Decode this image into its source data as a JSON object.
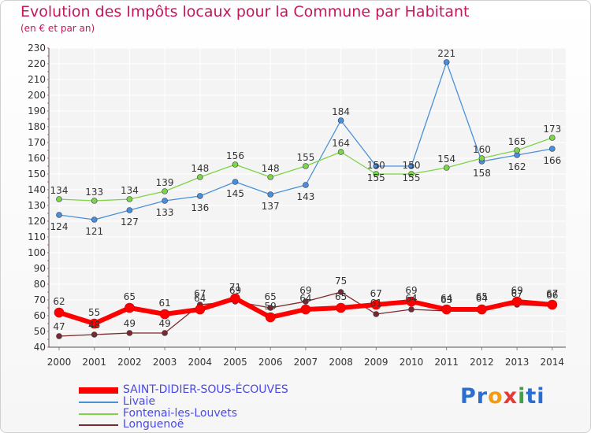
{
  "title": "Evolution des Impôts locaux pour la Commune par Habitant",
  "subtitle": "(en € et par an)",
  "logo": [
    "Pr",
    "o",
    "x",
    "i",
    "ti"
  ],
  "logo_colors": [
    "#2a6fd0",
    "#f39c12",
    "#e53935",
    "#43a047",
    "#2a6fd0"
  ],
  "chart_data": {
    "type": "line",
    "x": [
      2000,
      2001,
      2002,
      2003,
      2004,
      2005,
      2006,
      2007,
      2008,
      2009,
      2010,
      2011,
      2012,
      2013,
      2014
    ],
    "ylim": [
      40,
      230
    ],
    "yticks": [
      40,
      50,
      60,
      70,
      80,
      90,
      100,
      110,
      120,
      130,
      140,
      150,
      160,
      170,
      180,
      190,
      200,
      210,
      220,
      230
    ],
    "grid": true,
    "series": [
      {
        "name": "SAINT-DIDIER-SOUS-ÉCOUVES",
        "color": "#ff0000",
        "values": [
          62,
          55,
          65,
          61,
          64,
          71,
          59,
          64,
          65,
          67,
          69,
          64,
          64,
          69,
          67
        ]
      },
      {
        "name": "Livaie",
        "color": "#4a90d9",
        "values": [
          124,
          121,
          127,
          133,
          136,
          145,
          137,
          143,
          184,
          155,
          155,
          221,
          158,
          162,
          166
        ]
      },
      {
        "name": "Fontenai-les-Louvets",
        "color": "#7ed348",
        "values": [
          134,
          133,
          134,
          139,
          148,
          156,
          148,
          155,
          164,
          150,
          150,
          154,
          160,
          165,
          173
        ]
      },
      {
        "name": "Longuenoë",
        "color": "#7a2a2a",
        "values": [
          47,
          48,
          49,
          49,
          67,
          69,
          65,
          69,
          75,
          61,
          64,
          63,
          65,
          67,
          66
        ]
      }
    ]
  }
}
